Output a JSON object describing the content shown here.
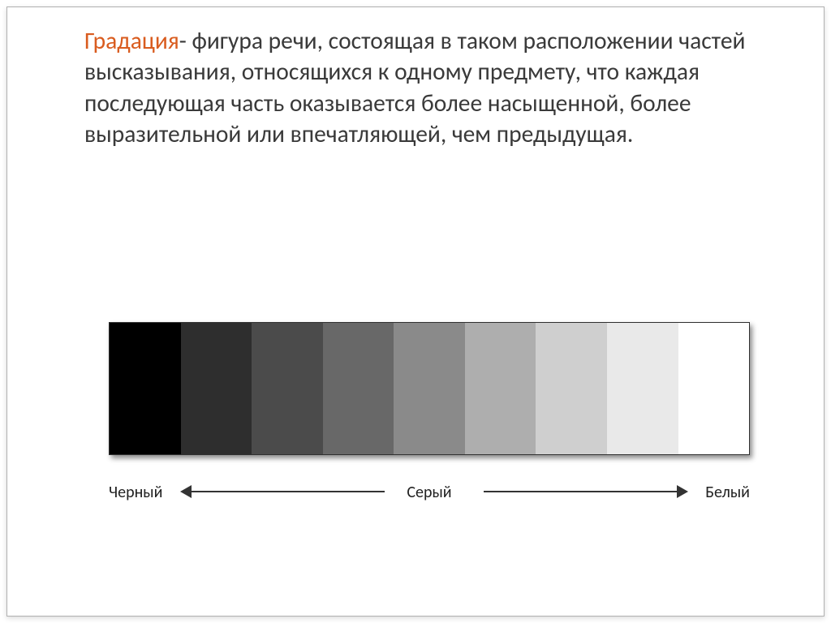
{
  "text": {
    "term": "Градация",
    "definition": "- фигура речи, состоящая в таком расположении частей высказывания, относящихся к одному предмету, что каждая последующая часть оказывается более насыщенной, более выразительной или впечатляющей, чем предыдущая."
  },
  "scale": {
    "swatch_colors": [
      "#000000",
      "#2e2e2e",
      "#4b4b4b",
      "#686868",
      "#8a8a8a",
      "#aeaeae",
      "#cfcfcf",
      "#e9e9e9",
      "#ffffff"
    ],
    "label_left": "Черный",
    "label_center": "Серый",
    "label_right": "Белый"
  },
  "colors": {
    "term_color": "#d95c1f",
    "text_color": "#3a3a3a",
    "arrow_color": "#333333"
  }
}
